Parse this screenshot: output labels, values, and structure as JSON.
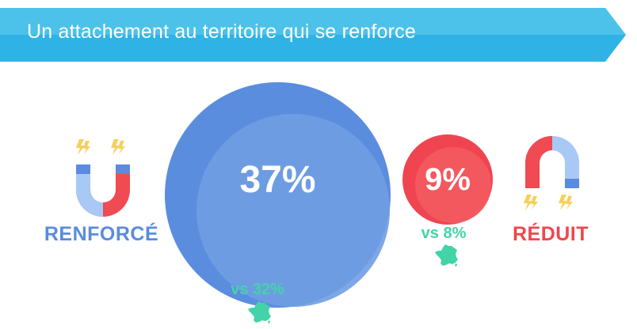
{
  "header": {
    "title": "Un attachement au territoire qui se renforce"
  },
  "left": {
    "label": "RENFORCÉ",
    "percent": "37%",
    "comparison": "vs 32%",
    "icon": "magnet-up-icon"
  },
  "right": {
    "label": "RÉDUIT",
    "percent": "9%",
    "comparison": "vs 8%",
    "icon": "magnet-down-icon"
  },
  "colors": {
    "banner": "#45bde8",
    "blue": "#6a99e0",
    "red": "#f25259",
    "green": "#43d3a8",
    "lightning": "#f6d05a"
  }
}
